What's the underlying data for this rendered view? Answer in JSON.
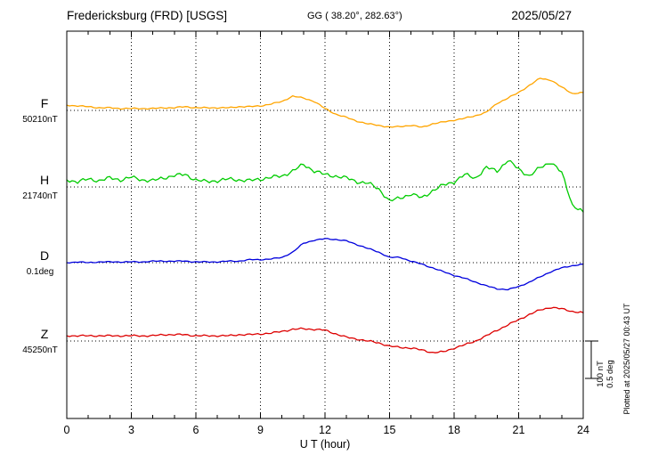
{
  "header": {
    "station": "Fredericksburg (FRD)  [USGS]",
    "coords": "GG ( 38.20°, 282.63°)",
    "date": "2025/05/27"
  },
  "right_labels": {
    "scale_nT": "100 nT",
    "scale_deg": "0.5 deg",
    "plotted_note": "Plotted at 2025/05/27 00:43 UT"
  },
  "chart_data": {
    "type": "line",
    "title": "Fredericksburg (FRD) [USGS] magnetogram",
    "date": "2025/05/27",
    "xlabel": "U T (hour)",
    "x_range_hours": [
      0,
      24
    ],
    "x_ticks": [
      0,
      3,
      6,
      9,
      12,
      15,
      18,
      21,
      24
    ],
    "sample_step_hours": 0.5,
    "scale_per_division": {
      "nT": 100,
      "deg": 0.5
    },
    "grid": "dotted vertical every 3h, dotted horizontal at each trace baseline",
    "series": [
      {
        "name": "F",
        "units": "nT",
        "baseline_label": "50210nT",
        "baseline_value": 50210,
        "color": "#FFA500",
        "offsets": [
          14,
          12,
          10,
          7,
          7,
          5,
          5,
          5,
          5,
          7,
          7,
          10,
          7,
          7,
          7,
          7,
          10,
          10,
          12,
          17,
          24,
          38,
          33,
          24,
          5,
          -10,
          -19,
          -29,
          -36,
          -40,
          -45,
          -43,
          -40,
          -45,
          -36,
          -31,
          -26,
          -21,
          -14,
          -5,
          19,
          33,
          48,
          67,
          86,
          81,
          62,
          45,
          48
        ]
      },
      {
        "name": "H",
        "units": "nT",
        "baseline_label": "21740nT",
        "baseline_value": 21740,
        "color": "#00CC00",
        "offsets": [
          19,
          14,
          21,
          17,
          24,
          19,
          26,
          19,
          17,
          24,
          31,
          33,
          19,
          14,
          17,
          21,
          19,
          17,
          21,
          26,
          29,
          43,
          60,
          43,
          33,
          29,
          24,
          14,
          10,
          -5,
          -38,
          -29,
          -19,
          -29,
          -10,
          5,
          14,
          33,
          24,
          52,
          43,
          71,
          48,
          29,
          52,
          67,
          38,
          -48,
          -67
        ]
      },
      {
        "name": "D",
        "units": "deg",
        "baseline_label": "0.1deg",
        "color": "#0000DD",
        "offsets": [
          0,
          0.01,
          0,
          0.01,
          0.01,
          0.01,
          0.01,
          0.01,
          0.02,
          0.02,
          0.02,
          0.02,
          0.01,
          0.01,
          0.01,
          0.02,
          0.02,
          0.04,
          0.04,
          0.05,
          0.07,
          0.14,
          0.26,
          0.3,
          0.32,
          0.31,
          0.29,
          0.24,
          0.19,
          0.14,
          0.07,
          0.07,
          0.02,
          -0.02,
          -0.07,
          -0.12,
          -0.17,
          -0.21,
          -0.26,
          -0.31,
          -0.35,
          -0.36,
          -0.32,
          -0.26,
          -0.19,
          -0.12,
          -0.07,
          -0.04,
          -0.02
        ]
      },
      {
        "name": "Z",
        "units": "nT",
        "baseline_label": "45250nT",
        "baseline_value": 45250,
        "color": "#DD0000",
        "offsets": [
          14,
          14,
          14,
          14,
          14,
          14,
          14,
          14,
          14,
          17,
          17,
          17,
          14,
          14,
          14,
          14,
          17,
          17,
          19,
          21,
          26,
          31,
          33,
          31,
          29,
          19,
          10,
          5,
          0,
          -5,
          -14,
          -17,
          -19,
          -24,
          -31,
          -29,
          -19,
          -10,
          0,
          14,
          29,
          43,
          57,
          71,
          83,
          90,
          86,
          79,
          76
        ]
      }
    ]
  }
}
